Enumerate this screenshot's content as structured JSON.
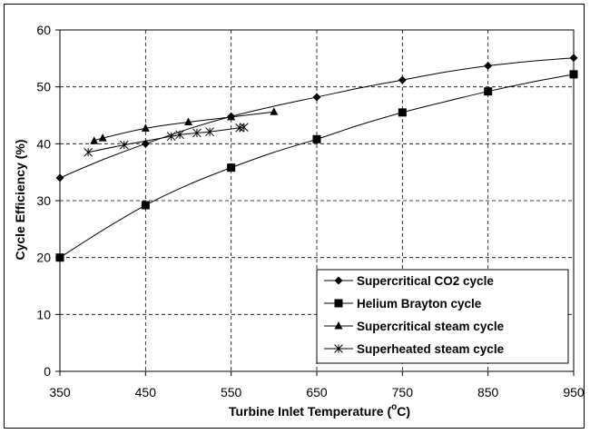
{
  "chart_data": {
    "type": "line",
    "xlabel": "Turbine Inlet Temperature (",
    "xlabel_sup": "o",
    "xlabel_tail": "C)",
    "ylabel": "Cycle Efficiency (%)",
    "xlim": [
      350,
      950
    ],
    "ylim": [
      0,
      60
    ],
    "x_ticks": [
      350,
      450,
      550,
      650,
      750,
      850,
      950
    ],
    "y_ticks": [
      0,
      10,
      20,
      30,
      40,
      50,
      60
    ],
    "grid": "dashed",
    "legend_position": "bottom-right",
    "series": [
      {
        "name": "Supercritical CO2 cycle",
        "marker": "diamond",
        "points": [
          [
            350,
            34
          ],
          [
            450,
            40
          ],
          [
            550,
            44.8
          ],
          [
            650,
            48.2
          ],
          [
            750,
            51.2
          ],
          [
            850,
            53.7
          ],
          [
            950,
            55.1
          ]
        ],
        "curve": [
          [
            350,
            34
          ],
          [
            400,
            37.2
          ],
          [
            450,
            40
          ],
          [
            500,
            42.6
          ],
          [
            550,
            44.8
          ],
          [
            600,
            46.6
          ],
          [
            650,
            48.2
          ],
          [
            700,
            49.8
          ],
          [
            750,
            51.2
          ],
          [
            800,
            52.6
          ],
          [
            850,
            53.7
          ],
          [
            900,
            54.5
          ],
          [
            950,
            55.1
          ]
        ]
      },
      {
        "name": "Helium Brayton cycle",
        "marker": "square",
        "points": [
          [
            350,
            20
          ],
          [
            450,
            29.2
          ],
          [
            550,
            35.8
          ],
          [
            650,
            40.8
          ],
          [
            750,
            45.5
          ],
          [
            850,
            49.2
          ],
          [
            950,
            52.2
          ]
        ],
        "curve": [
          [
            350,
            20
          ],
          [
            400,
            24.8
          ],
          [
            450,
            29.2
          ],
          [
            500,
            32.8
          ],
          [
            550,
            35.8
          ],
          [
            600,
            38.5
          ],
          [
            650,
            40.8
          ],
          [
            700,
            43.3
          ],
          [
            750,
            45.5
          ],
          [
            800,
            47.4
          ],
          [
            850,
            49.2
          ],
          [
            900,
            50.8
          ],
          [
            950,
            52.2
          ]
        ]
      },
      {
        "name": "Supercritical steam cycle",
        "marker": "triangle",
        "points": [
          [
            390,
            40.5
          ],
          [
            400,
            41
          ],
          [
            450,
            42.7
          ],
          [
            500,
            43.8
          ],
          [
            550,
            44.7
          ],
          [
            600,
            45.6
          ]
        ],
        "curve": [
          [
            390,
            40.5
          ],
          [
            400,
            41
          ],
          [
            450,
            42.7
          ],
          [
            500,
            43.8
          ],
          [
            550,
            44.7
          ],
          [
            600,
            45.6
          ]
        ]
      },
      {
        "name": "Superheated steam cycle",
        "marker": "asterisk",
        "points": [
          [
            383,
            38.5
          ],
          [
            425,
            39.8
          ],
          [
            480,
            41.3
          ],
          [
            490,
            41.6
          ],
          [
            510,
            41.9
          ],
          [
            525,
            42.1
          ],
          [
            560,
            42.8
          ],
          [
            565,
            42.9
          ]
        ],
        "curve": [
          [
            383,
            38.5
          ],
          [
            425,
            39.8
          ],
          [
            480,
            41.3
          ],
          [
            490,
            41.6
          ],
          [
            510,
            41.9
          ],
          [
            525,
            42.1
          ],
          [
            560,
            42.8
          ],
          [
            565,
            42.9
          ]
        ]
      }
    ]
  }
}
